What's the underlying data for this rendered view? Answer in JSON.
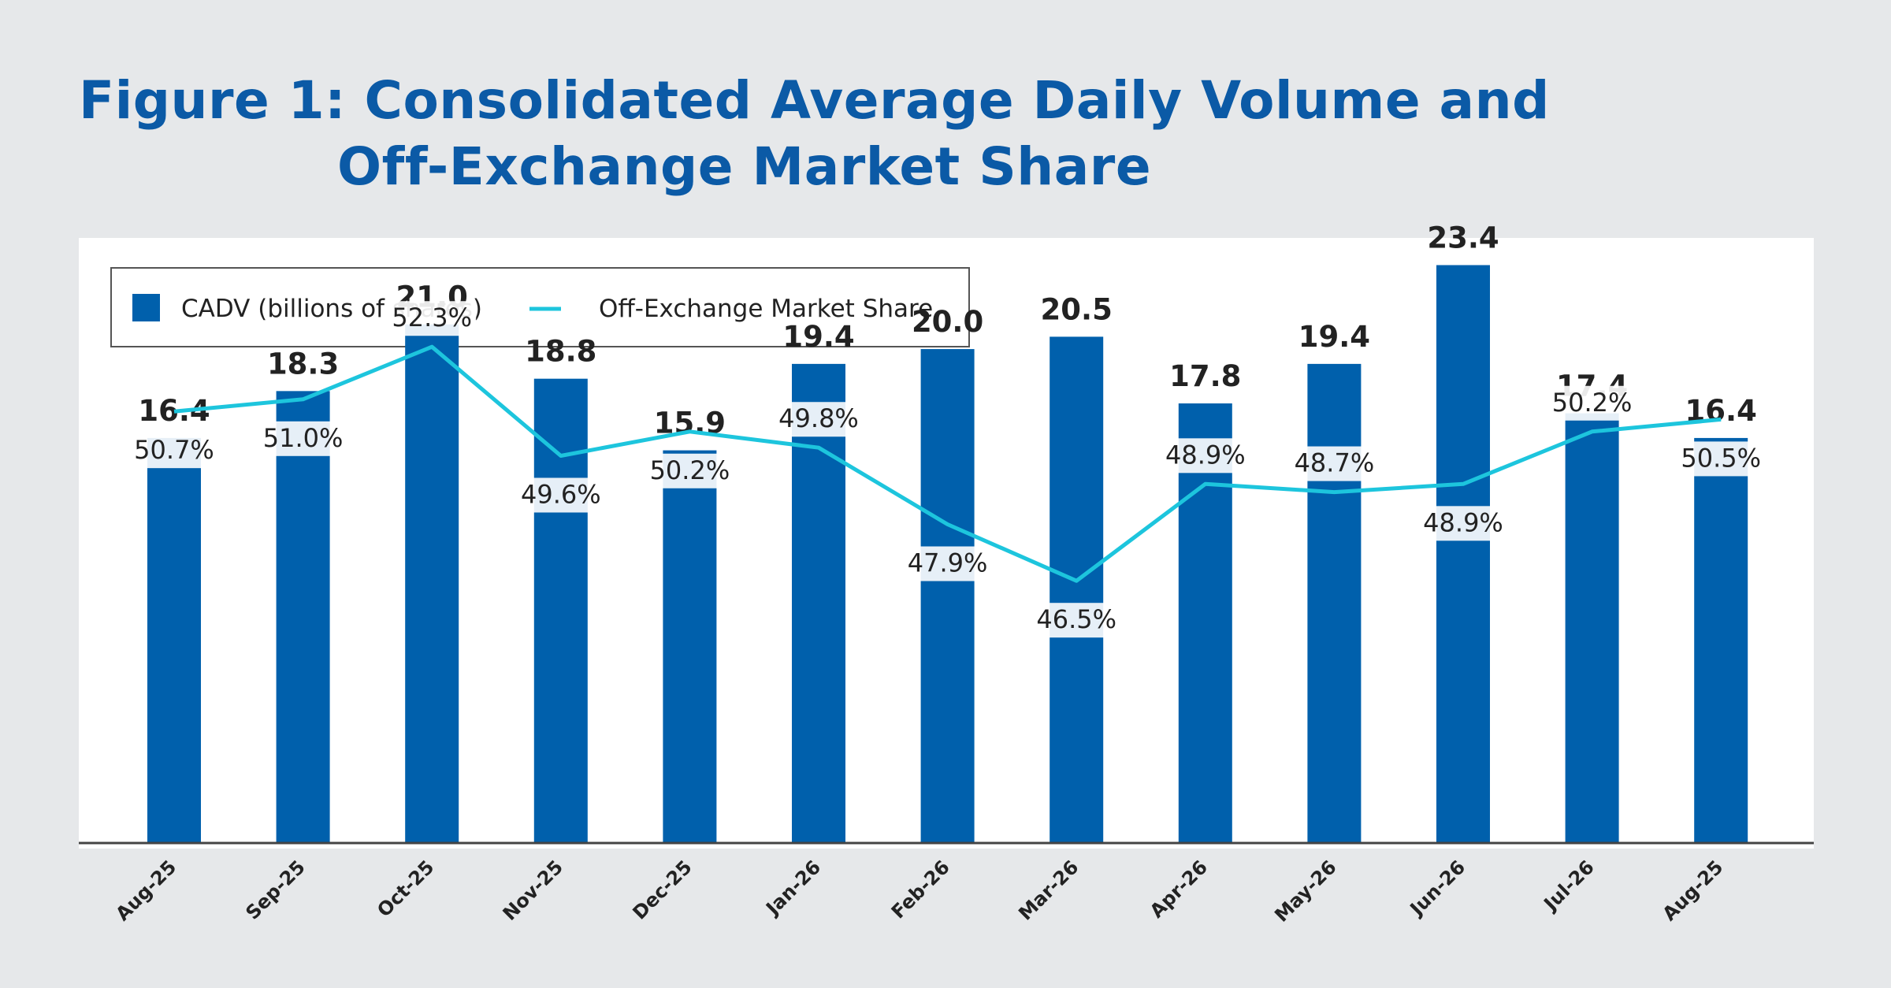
{
  "title": {
    "line1": "Figure 1: Consolidated Average Daily Volume and",
    "line2": "Off-Exchange Market Share"
  },
  "colors": {
    "background": "#e6e8ea",
    "panel": "#ffffff",
    "title": "#0b5aa6",
    "bar": "#0060ac",
    "line": "#1dc5dd",
    "text": "#222222"
  },
  "chart_data": {
    "type": "bar",
    "categories": [
      "Aug-25",
      "Sep-25",
      "Oct-25",
      "Nov-25",
      "Dec-25",
      "Jan-26",
      "Feb-26",
      "Mar-26",
      "Apr-26",
      "May-26",
      "Jun-26",
      "Jul-26",
      "Aug-25"
    ],
    "series": [
      {
        "name": "CADV (billions of shares)",
        "type": "bar",
        "values": [
          16.4,
          18.3,
          21.0,
          18.8,
          15.9,
          19.4,
          20.0,
          20.5,
          17.8,
          19.4,
          23.4,
          17.4,
          16.4
        ],
        "labels": [
          "16.4",
          "18.3",
          "21.0",
          "18.8",
          "15.9",
          "19.4",
          "20.0",
          "20.5",
          "17.8",
          "19.4",
          "23.4",
          "17.4",
          "16.4"
        ]
      },
      {
        "name": "Off-Exchange Market Share",
        "type": "line",
        "values": [
          50.7,
          51.0,
          52.3,
          49.6,
          50.2,
          49.8,
          47.9,
          46.5,
          48.9,
          48.7,
          48.9,
          50.2,
          50.5
        ],
        "labels": [
          "50.7%",
          "51.0%",
          "52.3%",
          "49.6%",
          "50.2%",
          "49.8%",
          "47.9%",
          "46.5%",
          "48.9%",
          "48.7%",
          "48.9%",
          "50.2%",
          "50.5%"
        ]
      }
    ],
    "axes": {
      "bar_ylim": [
        0,
        24.5
      ],
      "line_ylim": [
        40,
        55
      ]
    },
    "grid": false,
    "legend": "top-left"
  }
}
